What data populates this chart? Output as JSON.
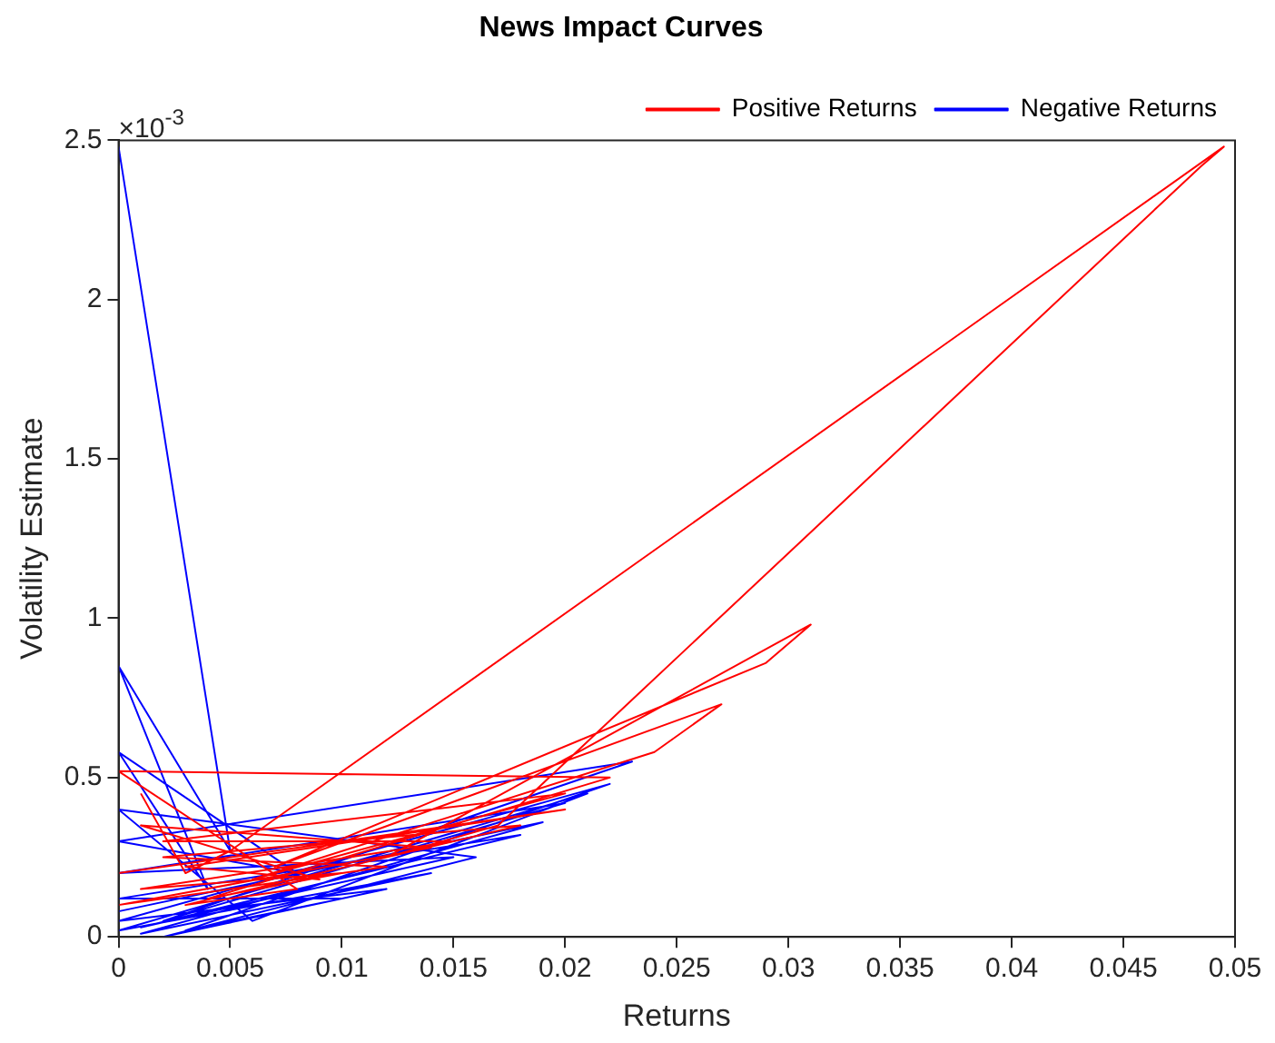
{
  "chart_data": {
    "type": "line",
    "title": "News Impact Curves",
    "xlabel": "Returns",
    "ylabel": "Volatility Estimate",
    "annotations": [
      "×10$^{-3}$"
    ],
    "xlim": [
      0,
      0.05
    ],
    "xticks": [
      0,
      0.005,
      0.01,
      0.015,
      0.02,
      0.025,
      0.03,
      0.035,
      0.04,
      0.045,
      0.05
    ],
    "ylim": [
      0,
      2.5
    ],
    "yticks": [
      0,
      0.5,
      1,
      1.5,
      2,
      2.5
    ],
    "grid": false,
    "legend": "top right",
    "marker": "none",
    "line_style": "solid",
    "series": [
      {
        "name": "Positive Returns",
        "color": "#ff0000",
        "x": [
          0.001,
          0.003,
          0.005,
          0.0495,
          0.0485,
          0.017,
          0.012,
          0.031,
          0.029,
          0.007,
          0.027,
          0.024,
          0.006,
          0.02,
          0.002,
          0.015,
          0.001,
          0.01,
          0.004,
          0.022,
          0,
          0.008,
          0.003,
          0.018,
          0.002,
          0.012,
          0,
          0.014,
          0.001,
          0.009,
          0.003,
          0.02,
          0
        ],
        "values": [
          0.45,
          0.2,
          0.27,
          2.48,
          2.42,
          0.35,
          0.25,
          0.98,
          0.86,
          0.22,
          0.73,
          0.58,
          0.18,
          0.45,
          0.3,
          0.3,
          0.15,
          0.2,
          0.12,
          0.5,
          0.52,
          0.15,
          0.1,
          0.35,
          0.25,
          0.22,
          0.1,
          0.28,
          0.35,
          0.18,
          0.22,
          0.4,
          0.2
        ]
      },
      {
        "name": "Negative Returns",
        "color": "#0000ff",
        "x": [
          0,
          0.005,
          0,
          0.004,
          0,
          0.008,
          0,
          0.023,
          0.002,
          0.02,
          0,
          0.015,
          0.001,
          0.018,
          0,
          0.01,
          0.003,
          0.022,
          0,
          0.012,
          0.002,
          0.016,
          0,
          0.006,
          0.021,
          0,
          0.014,
          0.001,
          0.019,
          0
        ],
        "values": [
          2.48,
          0.27,
          0.85,
          0.15,
          0.58,
          0.2,
          0.3,
          0.55,
          0.05,
          0.42,
          0.2,
          0.25,
          0.03,
          0.32,
          0.12,
          0.12,
          0.02,
          0.48,
          0.05,
          0.15,
          0,
          0.25,
          0.4,
          0.05,
          0.45,
          0.02,
          0.2,
          0.01,
          0.36,
          0.08
        ]
      }
    ]
  }
}
